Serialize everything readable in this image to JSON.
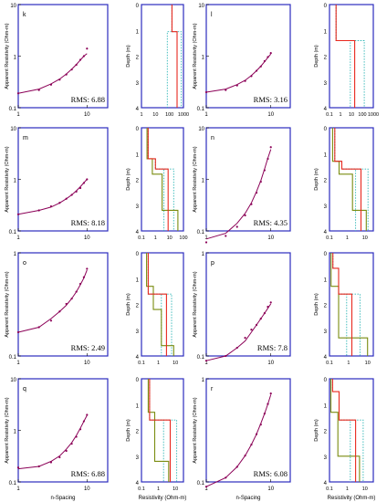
{
  "colors": {
    "frame": "#2b2bbf",
    "measured": "#8b0057",
    "model_red": "#e8281e",
    "model_olive": "#7a8c10",
    "model_cyan": "#2fb6b6"
  },
  "labels": {
    "app_res": "Apparent Resistivity (Ohm-m)",
    "depth": "Depth (m)",
    "n_spacing": "n-Spacing",
    "resistivity": "Resistivity (Ohm-m)"
  },
  "chart_data": [
    {
      "type": "scatter",
      "panel": "k",
      "rms_text": "RMS: 6.88",
      "yticks": [
        "10",
        "1",
        "0.1"
      ],
      "x": [
        1,
        2,
        3,
        4,
        5,
        6,
        7,
        8,
        9,
        10
      ],
      "measured": [
        0.19,
        0.22,
        0.28,
        0.35,
        0.44,
        0.55,
        0.68,
        0.85,
        1.0,
        1.4
      ],
      "calculated": [
        0.19,
        0.23,
        0.29,
        0.36,
        0.45,
        0.56,
        0.69,
        0.84,
        1.0,
        1.12
      ]
    },
    {
      "type": "line",
      "panel": "k-model",
      "depth_ticks": [
        "0",
        "1",
        "2",
        "3",
        "4"
      ],
      "x_ticks": [
        "1",
        "10",
        "100",
        "1000"
      ],
      "xlim": [
        1,
        1000
      ],
      "red": [
        [
          150,
          0
        ],
        [
          150,
          1.05
        ],
        [
          350,
          1.05
        ],
        [
          350,
          4
        ]
      ],
      "olive": [],
      "cyan": [
        [
          [
            150,
            0
          ],
          [
            150,
            1.05
          ],
          [
            70,
            1.05
          ],
          [
            70,
            4
          ]
        ],
        [
          [
            150,
            0
          ],
          [
            150,
            1.05
          ],
          [
            700,
            1.05
          ],
          [
            700,
            4
          ]
        ]
      ]
    },
    {
      "type": "scatter",
      "panel": "l",
      "rms_text": "RMS: 3.16",
      "yticks": [
        "10",
        "1",
        "0.1"
      ],
      "x": [
        1,
        2,
        3,
        4,
        5,
        6,
        7,
        8,
        9,
        10
      ],
      "measured": [
        0.2,
        0.22,
        0.27,
        0.33,
        0.41,
        0.52,
        0.63,
        0.8,
        0.96,
        1.15
      ],
      "calculated": [
        0.2,
        0.23,
        0.28,
        0.34,
        0.42,
        0.52,
        0.64,
        0.78,
        0.94,
        1.1
      ]
    },
    {
      "type": "line",
      "panel": "l-model",
      "depth_ticks": [
        "0",
        "1",
        "2",
        "3",
        "4"
      ],
      "x_ticks": [
        "0.1",
        "1",
        "10",
        "100",
        "1000"
      ],
      "xlim": [
        0.1,
        1000
      ],
      "red": [
        [
          0.4,
          0
        ],
        [
          0.4,
          1.4
        ],
        [
          20,
          1.4
        ],
        [
          20,
          4
        ]
      ],
      "olive": [],
      "cyan": [
        [
          [
            0.4,
            0
          ],
          [
            0.4,
            1.4
          ],
          [
            8,
            1.4
          ],
          [
            8,
            4
          ]
        ],
        [
          [
            0.4,
            0
          ],
          [
            0.4,
            1.4
          ],
          [
            150,
            1.4
          ],
          [
            150,
            4
          ]
        ]
      ]
    },
    {
      "type": "scatter",
      "panel": "m",
      "rms_text": "RMS: 8.18",
      "yticks": [
        "10",
        "1",
        "0.1"
      ],
      "x": [
        1,
        2,
        3,
        4,
        5,
        6,
        7,
        8,
        9,
        10
      ],
      "measured": [
        0.21,
        0.25,
        0.3,
        0.35,
        0.42,
        0.5,
        0.58,
        0.68,
        0.85,
        1.0
      ],
      "calculated": [
        0.21,
        0.25,
        0.29,
        0.35,
        0.42,
        0.5,
        0.6,
        0.72,
        0.86,
        1.0
      ]
    },
    {
      "type": "line",
      "panel": "m-model",
      "depth_ticks": [
        "0",
        "1",
        "2",
        "3",
        "4"
      ],
      "x_ticks": [
        "0.1",
        "1",
        "10",
        "100"
      ],
      "xlim": [
        0.1,
        100
      ],
      "red": [
        [
          0.3,
          0
        ],
        [
          0.3,
          1.2
        ],
        [
          1,
          1.2
        ],
        [
          1,
          1.6
        ],
        [
          8,
          1.6
        ],
        [
          8,
          4
        ]
      ],
      "olive": [
        [
          0.25,
          0
        ],
        [
          0.25,
          1.2
        ],
        [
          0.6,
          1.2
        ],
        [
          0.6,
          1.8
        ],
        [
          3,
          1.8
        ],
        [
          3,
          3.2
        ],
        [
          40,
          3.2
        ],
        [
          40,
          4
        ]
      ],
      "cyan": [
        [
          [
            0.3,
            0
          ],
          [
            0.3,
            1.2
          ],
          [
            1,
            1.2
          ],
          [
            1,
            1.6
          ],
          [
            4,
            1.6
          ],
          [
            4,
            4
          ]
        ],
        [
          [
            0.3,
            0
          ],
          [
            0.3,
            1.2
          ],
          [
            1,
            1.2
          ],
          [
            1,
            1.6
          ],
          [
            20,
            1.6
          ],
          [
            20,
            4
          ]
        ]
      ]
    },
    {
      "type": "scatter",
      "panel": "n",
      "rms_text": "RMS: 4.35",
      "yticks": [
        "10",
        "1",
        "0.1"
      ],
      "x": [
        1,
        2,
        3,
        4,
        5,
        6,
        7,
        8,
        9,
        10
      ],
      "measured": [
        0.06,
        0.08,
        0.12,
        0.2,
        0.33,
        0.55,
        0.9,
        1.5,
        2.5,
        4.2
      ],
      "calculated": [
        0.07,
        0.09,
        0.14,
        0.22,
        0.35,
        0.58,
        0.95,
        1.6,
        2.6,
        3.8
      ]
    },
    {
      "type": "line",
      "panel": "n-model",
      "depth_ticks": [
        "0",
        "1",
        "2",
        "3",
        "4"
      ],
      "x_ticks": [
        "0.1",
        "1",
        "10"
      ],
      "xlim": [
        0.1,
        30
      ],
      "red": [
        [
          0.2,
          0
        ],
        [
          0.2,
          1.3
        ],
        [
          0.5,
          1.3
        ],
        [
          0.5,
          1.6
        ],
        [
          6,
          1.6
        ],
        [
          6,
          4
        ]
      ],
      "olive": [
        [
          0.15,
          0
        ],
        [
          0.15,
          1.3
        ],
        [
          0.35,
          1.3
        ],
        [
          0.35,
          1.8
        ],
        [
          2,
          1.8
        ],
        [
          2,
          3.2
        ],
        [
          12,
          3.2
        ],
        [
          12,
          4
        ]
      ],
      "cyan": [
        [
          [
            0.2,
            0
          ],
          [
            0.2,
            1.3
          ],
          [
            0.5,
            1.3
          ],
          [
            0.5,
            1.6
          ],
          [
            3,
            1.6
          ],
          [
            3,
            4
          ]
        ],
        [
          [
            0.2,
            0
          ],
          [
            0.2,
            1.3
          ],
          [
            0.5,
            1.3
          ],
          [
            0.5,
            1.6
          ],
          [
            15,
            1.6
          ],
          [
            15,
            4
          ]
        ]
      ]
    },
    {
      "type": "scatter",
      "panel": "o",
      "rms_text": "RMS: 2.49",
      "yticks": [
        "1",
        "0.1"
      ],
      "x": [
        1,
        2,
        3,
        4,
        5,
        6,
        7,
        8,
        9,
        10
      ],
      "measured": [
        0.17,
        0.19,
        0.22,
        0.27,
        0.32,
        0.36,
        0.42,
        0.5,
        0.58,
        0.7
      ],
      "calculated": [
        0.17,
        0.19,
        0.23,
        0.27,
        0.31,
        0.36,
        0.42,
        0.49,
        0.57,
        0.68
      ]
    },
    {
      "type": "line",
      "panel": "o-model",
      "depth_ticks": [
        "0",
        "1",
        "2",
        "3",
        "4"
      ],
      "x_ticks": [
        "0.1",
        "1",
        "10"
      ],
      "xlim": [
        0.1,
        30
      ],
      "red": [
        [
          0.25,
          0
        ],
        [
          0.25,
          1.6
        ],
        [
          3,
          1.6
        ],
        [
          3,
          4
        ]
      ],
      "olive": [
        [
          0.2,
          0
        ],
        [
          0.2,
          1.3
        ],
        [
          0.5,
          1.3
        ],
        [
          0.5,
          2.2
        ],
        [
          1.5,
          2.2
        ],
        [
          1.5,
          3.6
        ],
        [
          8,
          3.6
        ],
        [
          8,
          4
        ]
      ],
      "cyan": [
        [
          [
            0.25,
            0
          ],
          [
            0.25,
            1.6
          ],
          [
            1.5,
            1.6
          ],
          [
            1.5,
            4
          ]
        ],
        [
          [
            0.25,
            0
          ],
          [
            0.25,
            1.6
          ],
          [
            6,
            1.6
          ],
          [
            6,
            4
          ]
        ]
      ]
    },
    {
      "type": "scatter",
      "panel": "p",
      "rms_text": "RMS: 7.8",
      "yticks": [
        "1",
        "0.1"
      ],
      "x": [
        1,
        2,
        3,
        4,
        5,
        6,
        7,
        8,
        9,
        10
      ],
      "measured": [
        0.09,
        0.1,
        0.12,
        0.15,
        0.18,
        0.2,
        0.23,
        0.26,
        0.3,
        0.33
      ],
      "calculated": [
        0.09,
        0.1,
        0.12,
        0.14,
        0.17,
        0.2,
        0.23,
        0.26,
        0.29,
        0.32
      ]
    },
    {
      "type": "line",
      "panel": "p-model",
      "depth_ticks": [
        "0",
        "1",
        "2",
        "3",
        "4"
      ],
      "x_ticks": [
        "0.1",
        "1",
        "10"
      ],
      "xlim": [
        0.1,
        20
      ],
      "red": [
        [
          0.15,
          0
        ],
        [
          0.15,
          0.6
        ],
        [
          0.3,
          0.6
        ],
        [
          0.3,
          1.6
        ],
        [
          1.5,
          1.6
        ],
        [
          1.5,
          4
        ]
      ],
      "olive": [
        [
          0.12,
          0
        ],
        [
          0.12,
          1.3
        ],
        [
          0.3,
          1.3
        ],
        [
          0.3,
          3.3
        ],
        [
          10,
          3.3
        ],
        [
          10,
          4
        ]
      ],
      "cyan": [
        [
          [
            0.15,
            0
          ],
          [
            0.15,
            0.6
          ],
          [
            0.3,
            0.6
          ],
          [
            0.3,
            1.6
          ],
          [
            0.8,
            1.6
          ],
          [
            0.8,
            4
          ]
        ],
        [
          [
            0.15,
            0
          ],
          [
            0.15,
            0.6
          ],
          [
            0.3,
            0.6
          ],
          [
            0.3,
            1.6
          ],
          [
            4,
            1.6
          ],
          [
            4,
            4
          ]
        ]
      ]
    },
    {
      "type": "scatter",
      "panel": "q",
      "rms_text": "RMS: 6.88",
      "yticks": [
        "10",
        "1",
        "0.1"
      ],
      "x": [
        1,
        2,
        3,
        4,
        5,
        6,
        7,
        8,
        9,
        10
      ],
      "measured": [
        0.19,
        0.2,
        0.24,
        0.3,
        0.4,
        0.55,
        0.75,
        1.05,
        1.5,
        2.0
      ],
      "calculated": [
        0.18,
        0.2,
        0.25,
        0.32,
        0.43,
        0.58,
        0.8,
        1.1,
        1.5,
        1.95
      ]
    },
    {
      "type": "line",
      "panel": "q-model",
      "depth_ticks": [
        "0",
        "1",
        "2",
        "3",
        "4"
      ],
      "x_ticks": [
        "0.1",
        "1",
        "10"
      ],
      "xlim": [
        0.1,
        30
      ],
      "red": [
        [
          0.3,
          0
        ],
        [
          0.3,
          1.6
        ],
        [
          5,
          1.6
        ],
        [
          5,
          4
        ]
      ],
      "olive": [
        [
          0.25,
          0
        ],
        [
          0.25,
          1.3
        ],
        [
          0.6,
          1.3
        ],
        [
          0.6,
          3.2
        ],
        [
          4,
          3.2
        ],
        [
          4,
          4
        ]
      ],
      "cyan": [
        [
          [
            0.3,
            0
          ],
          [
            0.3,
            1.6
          ],
          [
            2,
            1.6
          ],
          [
            2,
            4
          ]
        ],
        [
          [
            0.3,
            0
          ],
          [
            0.3,
            1.6
          ],
          [
            12,
            1.6
          ],
          [
            12,
            4
          ]
        ]
      ]
    },
    {
      "type": "scatter",
      "panel": "r",
      "rms_text": "RMS: 6.08",
      "yticks": [
        "1",
        "0.1"
      ],
      "x": [
        1,
        2,
        3,
        4,
        5,
        6,
        7,
        8,
        9,
        10
      ],
      "measured": [
        0.09,
        0.11,
        0.14,
        0.18,
        0.23,
        0.29,
        0.36,
        0.46,
        0.57,
        0.72
      ],
      "calculated": [
        0.09,
        0.11,
        0.14,
        0.18,
        0.23,
        0.29,
        0.37,
        0.46,
        0.57,
        0.7
      ]
    },
    {
      "type": "line",
      "panel": "r-model",
      "depth_ticks": [
        "0",
        "1",
        "2",
        "3",
        "4"
      ],
      "x_ticks": [
        "0.1",
        "1",
        "10"
      ],
      "xlim": [
        0.1,
        30
      ],
      "red": [
        [
          0.15,
          0
        ],
        [
          0.15,
          0.5
        ],
        [
          0.35,
          0.5
        ],
        [
          0.35,
          1.6
        ],
        [
          3,
          1.6
        ],
        [
          3,
          4
        ]
      ],
      "olive": [
        [
          0.12,
          0
        ],
        [
          0.12,
          1.3
        ],
        [
          0.3,
          1.3
        ],
        [
          0.3,
          3.0
        ],
        [
          5,
          3.0
        ],
        [
          5,
          4
        ]
      ],
      "cyan": [
        [
          [
            0.15,
            0
          ],
          [
            0.15,
            0.5
          ],
          [
            0.35,
            0.5
          ],
          [
            0.35,
            1.6
          ],
          [
            1.5,
            1.6
          ],
          [
            1.5,
            4
          ]
        ],
        [
          [
            0.15,
            0
          ],
          [
            0.15,
            0.5
          ],
          [
            0.35,
            0.5
          ],
          [
            0.35,
            1.6
          ],
          [
            8,
            1.6
          ],
          [
            8,
            4
          ]
        ]
      ]
    }
  ]
}
